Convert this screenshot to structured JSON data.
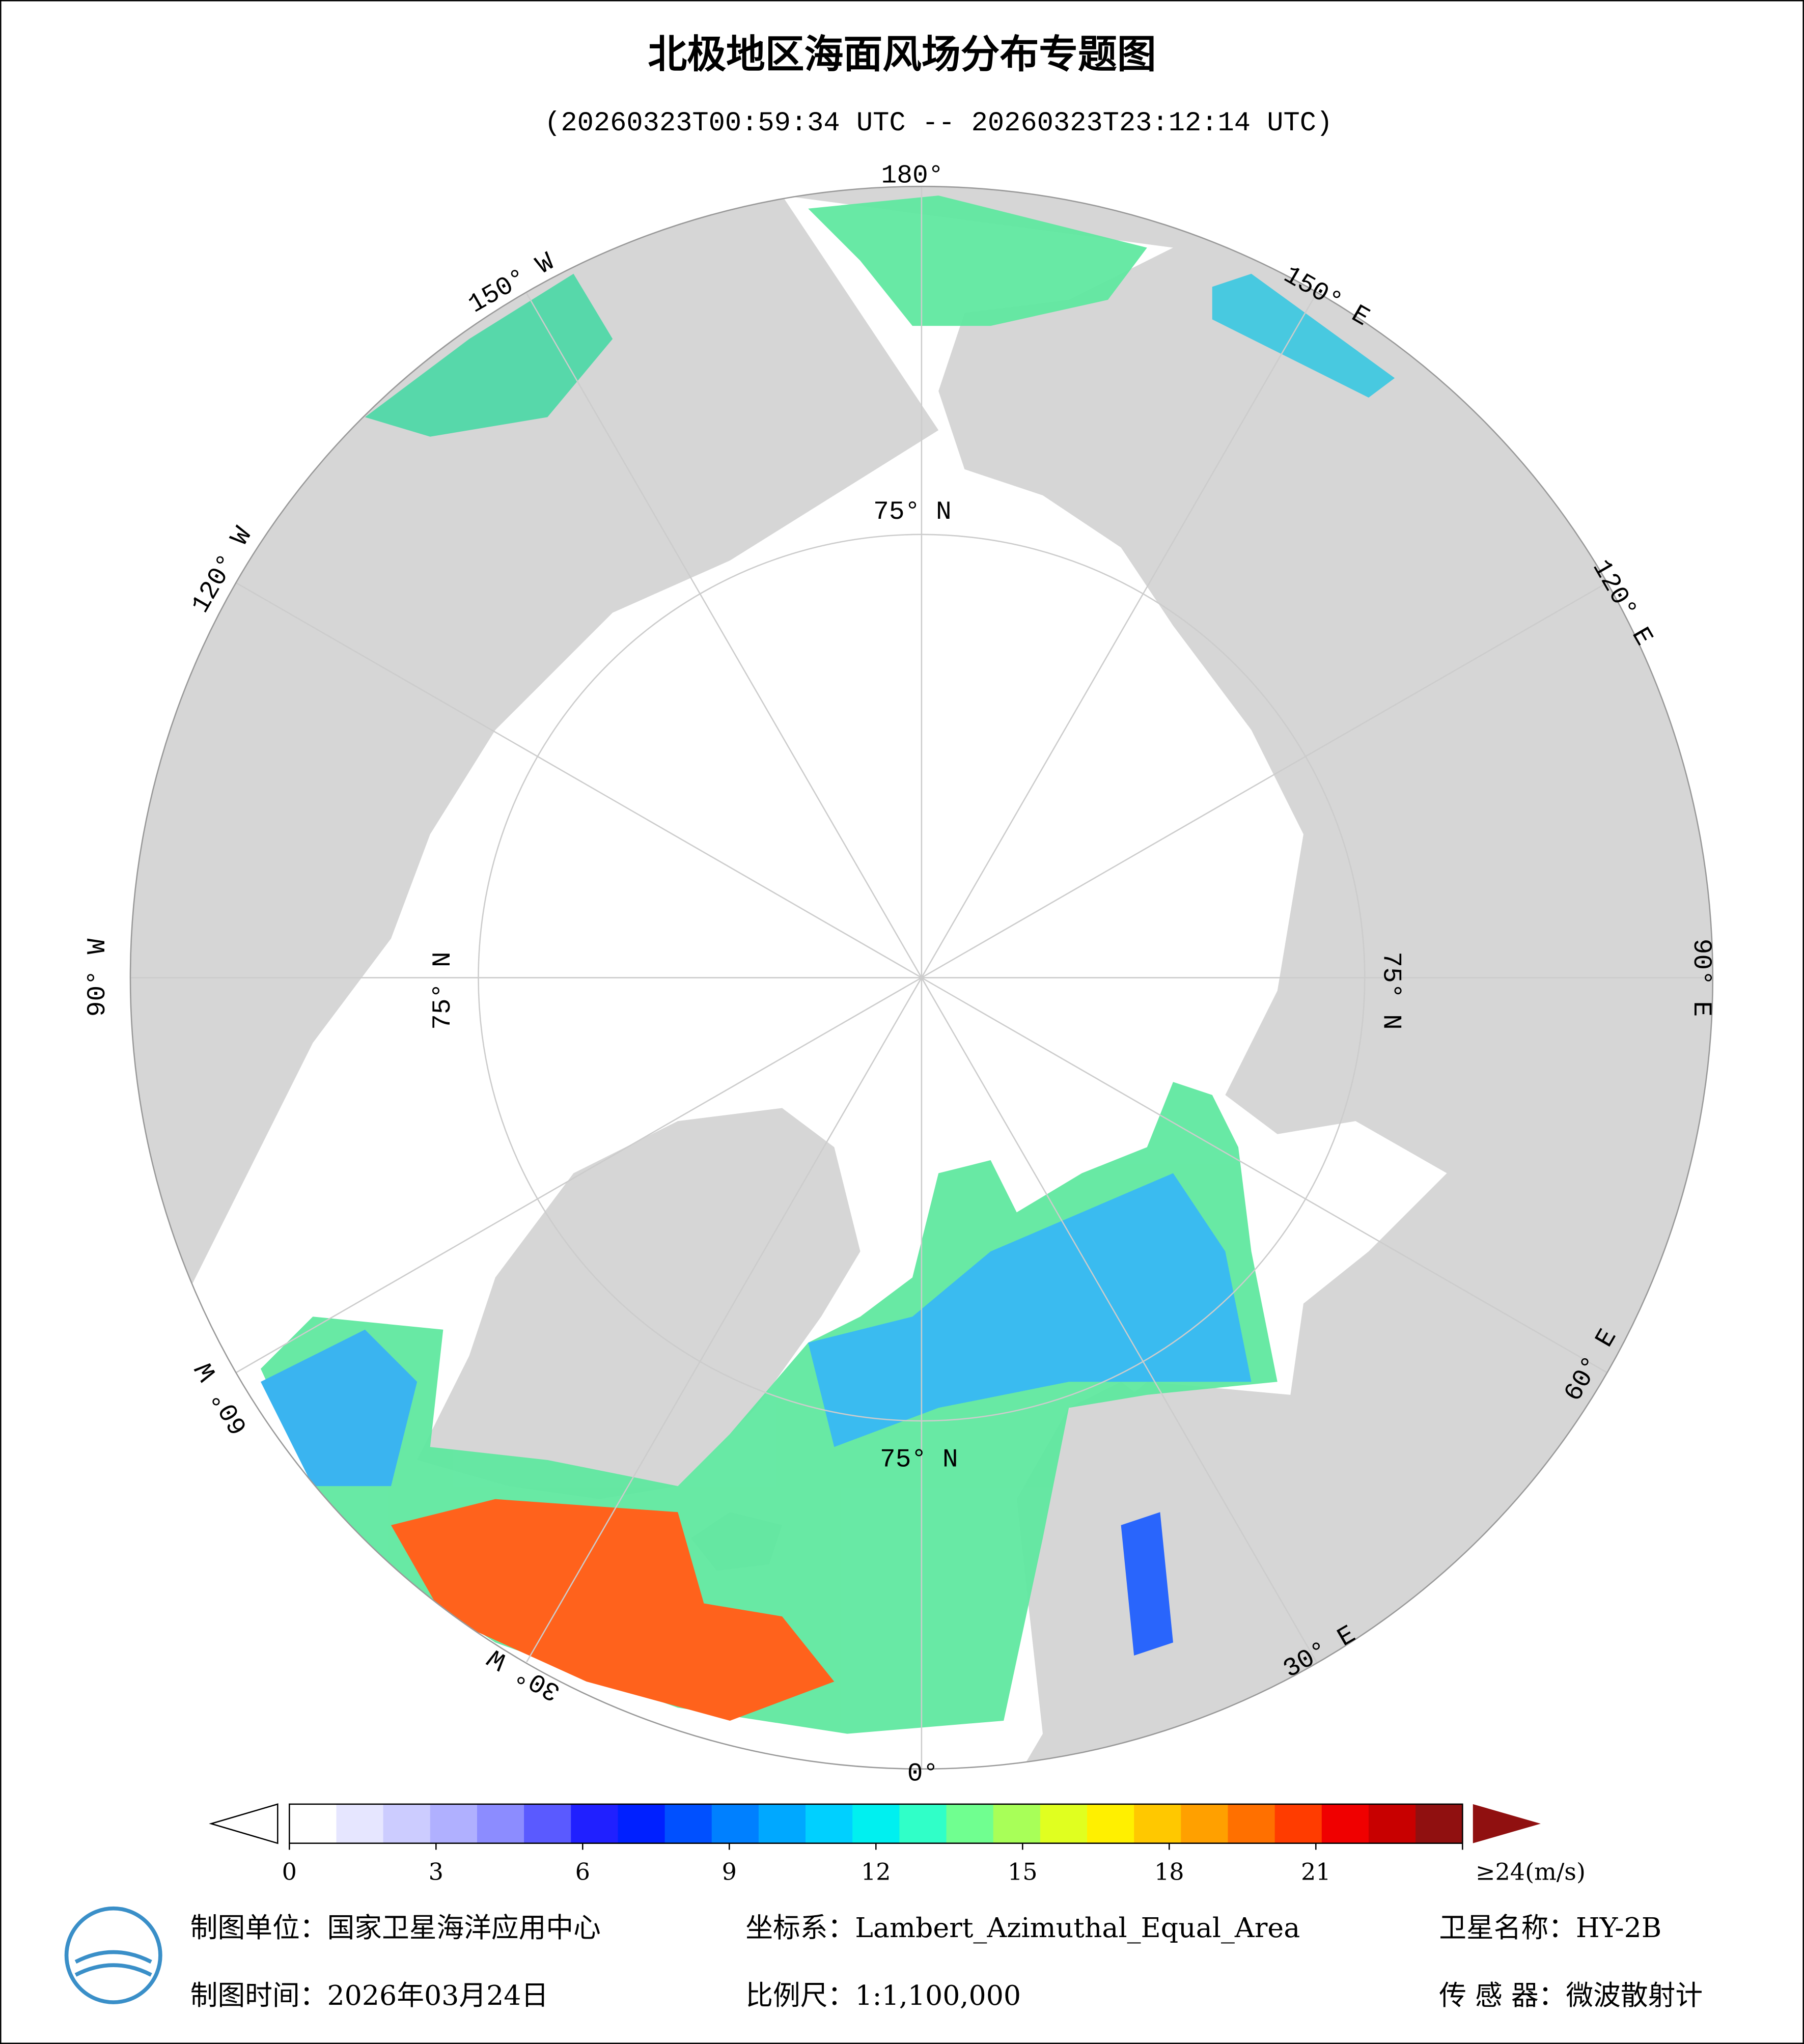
{
  "header": {
    "title": "北极地区海面风场分布专题图",
    "subtitle": "(20260323T00:59:34 UTC -- 20260323T23:12:14 UTC)"
  },
  "map": {
    "lon_labels": [
      "180°",
      "150° E",
      "120° E",
      "90° E",
      "60° E",
      "30° E",
      "0°",
      "30° W",
      "60° W",
      "90° W",
      "120° W",
      "150° W"
    ],
    "lat_labels": [
      "75° N",
      "75° N",
      "75° N",
      "75° N"
    ]
  },
  "colorbar": {
    "range": [
      0,
      24
    ],
    "ticks": [
      0,
      3,
      6,
      9,
      12,
      15,
      18,
      21,
      {
        "value": 24,
        "label": "≥24(m/s)"
      }
    ],
    "colors": [
      "#ffffff",
      "#e6e6ff",
      "#ccccff",
      "#b0b0ff",
      "#8c8cff",
      "#5a5aff",
      "#2020ff",
      "#0020ff",
      "#0050ff",
      "#0080ff",
      "#00a8ff",
      "#00d0ff",
      "#00f0f0",
      "#30ffc8",
      "#70ff90",
      "#a8ff58",
      "#e0ff20",
      "#fff000",
      "#ffc800",
      "#ffa000",
      "#ff7000",
      "#ff3c00",
      "#f00000",
      "#c80000",
      "#901010"
    ]
  },
  "footer": {
    "unit": "制图单位：国家卫星海洋应用中心",
    "crs": "坐标系：Lambert_Azimuthal_Equal_Area",
    "satellite": "卫星名称：HY-2B",
    "date": "制图时间：2026年03月24日",
    "scale": "比例尺：1:1,100,000",
    "sensor": "传 感 器：微波散射计"
  }
}
